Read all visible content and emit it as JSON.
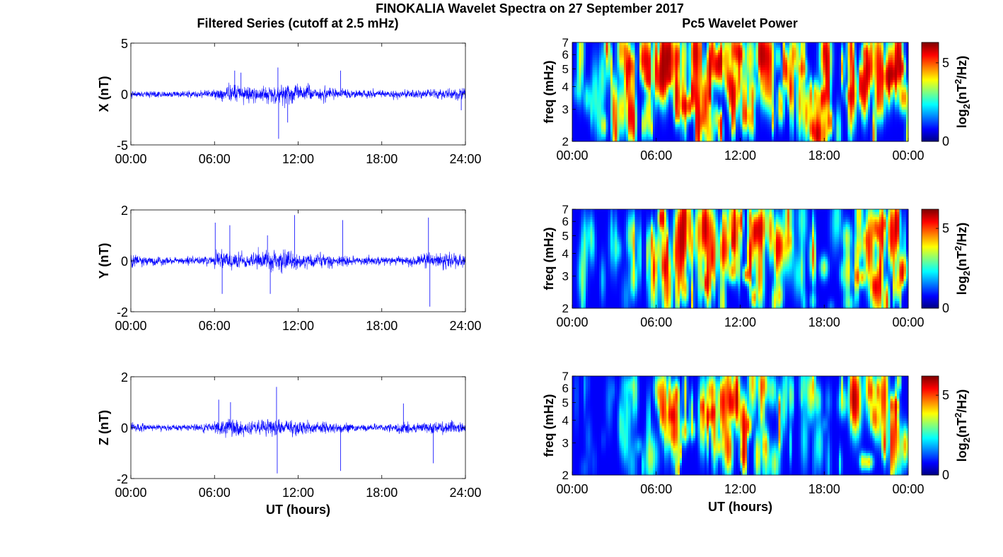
{
  "figure": {
    "title": "FINOKALIA Wavelet Spectra on 27 September 2017",
    "left_column_title": "Filtered Series (cutoff at 2.5 mHz)",
    "right_column_title": "Pc5 Wavelet Power",
    "colors": {
      "series_line": "#0000ff",
      "axes": "#000000",
      "background": "#ffffff"
    },
    "colormap": "jet"
  },
  "chart_data": [
    {
      "type": "line",
      "panel": "X",
      "ylabel": "X (nT)",
      "xlabel": "",
      "xlim": [
        0,
        24
      ],
      "ylim": [
        -5,
        5
      ],
      "xticks": [
        "00:00",
        "06:00",
        "12:00",
        "18:00",
        "24:00"
      ],
      "yticks": [
        "-5",
        "0",
        "5"
      ],
      "noise_std_by_hour": [
        0.25,
        0.25,
        0.22,
        0.22,
        0.25,
        0.28,
        0.45,
        0.65,
        0.6,
        0.55,
        0.6,
        0.75,
        0.55,
        0.45,
        0.4,
        0.4,
        0.3,
        0.28,
        0.25,
        0.35,
        0.3,
        0.3,
        0.35,
        0.45
      ],
      "spikes": [
        {
          "t": 7.45,
          "v": 2.3
        },
        {
          "t": 7.9,
          "v": 2.1
        },
        {
          "t": 10.55,
          "v": 2.6
        },
        {
          "t": 10.6,
          "v": -4.4
        },
        {
          "t": 11.25,
          "v": -2.8
        },
        {
          "t": 15.05,
          "v": 2.3
        },
        {
          "t": 23.7,
          "v": -1.6
        }
      ]
    },
    {
      "type": "line",
      "panel": "Y",
      "ylabel": "Y (nT)",
      "xlabel": "",
      "xlim": [
        0,
        24
      ],
      "ylim": [
        -2,
        2
      ],
      "xticks": [
        "00:00",
        "06:00",
        "12:00",
        "18:00",
        "24:00"
      ],
      "yticks": [
        "-2",
        "0",
        "2"
      ],
      "noise_std_by_hour": [
        0.18,
        0.12,
        0.12,
        0.1,
        0.12,
        0.14,
        0.25,
        0.28,
        0.2,
        0.28,
        0.3,
        0.28,
        0.2,
        0.2,
        0.18,
        0.16,
        0.12,
        0.12,
        0.12,
        0.12,
        0.15,
        0.22,
        0.25,
        0.2
      ],
      "spikes": [
        {
          "t": 6.05,
          "v": 1.5
        },
        {
          "t": 6.55,
          "v": -1.3
        },
        {
          "t": 7.1,
          "v": 1.4
        },
        {
          "t": 9.8,
          "v": 1.0
        },
        {
          "t": 10.0,
          "v": -1.3
        },
        {
          "t": 11.75,
          "v": 1.8
        },
        {
          "t": 15.2,
          "v": 1.6
        },
        {
          "t": 21.35,
          "v": 1.7
        },
        {
          "t": 21.45,
          "v": -1.8
        }
      ]
    },
    {
      "type": "line",
      "panel": "Z",
      "ylabel": "Z (nT)",
      "xlabel": "UT (hours)",
      "xlim": [
        0,
        24
      ],
      "ylim": [
        -2,
        2
      ],
      "xticks": [
        "00:00",
        "06:00",
        "12:00",
        "18:00",
        "24:00"
      ],
      "yticks": [
        "-2",
        "0",
        "2"
      ],
      "noise_std_by_hour": [
        0.12,
        0.1,
        0.09,
        0.09,
        0.1,
        0.12,
        0.22,
        0.25,
        0.18,
        0.2,
        0.25,
        0.24,
        0.18,
        0.15,
        0.14,
        0.15,
        0.1,
        0.1,
        0.1,
        0.18,
        0.14,
        0.16,
        0.2,
        0.16
      ],
      "spikes": [
        {
          "t": 6.3,
          "v": 1.1
        },
        {
          "t": 7.15,
          "v": 1.0
        },
        {
          "t": 10.45,
          "v": 1.6
        },
        {
          "t": 10.5,
          "v": -1.8
        },
        {
          "t": 15.05,
          "v": -1.7
        },
        {
          "t": 19.55,
          "v": 0.95
        },
        {
          "t": 21.7,
          "v": -1.4
        }
      ]
    },
    {
      "type": "heatmap",
      "panel": "X",
      "ylabel": "freq (mHz)",
      "xlabel": "",
      "xlim": [
        0,
        24
      ],
      "ylim": [
        2,
        7
      ],
      "yscale": "log",
      "xticks": [
        "00:00",
        "06:00",
        "12:00",
        "18:00",
        "00:00"
      ],
      "yticks": [
        "2",
        "3",
        "4",
        "5",
        "6",
        "7"
      ],
      "colorbar": {
        "label_base": "log",
        "label_sub": "2",
        "label_mid": "(nT",
        "label_sup": "2",
        "label_end": "/Hz)",
        "range": [
          0,
          6.3
        ],
        "ticks": [
          "0",
          "5"
        ]
      },
      "activity_by_hour": [
        0.3,
        0.35,
        0.6,
        0.85,
        0.95,
        1.0,
        1.0,
        1.0,
        1.0,
        1.0,
        1.0,
        1.0,
        0.9,
        0.75,
        0.7,
        0.8,
        0.65,
        0.95,
        0.9,
        0.7,
        0.8,
        0.9,
        1.0,
        1.0
      ]
    },
    {
      "type": "heatmap",
      "panel": "Y",
      "ylabel": "freq (mHz)",
      "xlabel": "",
      "xlim": [
        0,
        24
      ],
      "ylim": [
        2,
        7
      ],
      "yscale": "log",
      "xticks": [
        "00:00",
        "06:00",
        "12:00",
        "18:00",
        "00:00"
      ],
      "yticks": [
        "2",
        "3",
        "4",
        "5",
        "6",
        "7"
      ],
      "colorbar": {
        "label_base": "log",
        "label_sub": "2",
        "label_mid": "(nT",
        "label_sup": "2",
        "label_end": "/Hz)",
        "range": [
          0,
          6.2
        ],
        "ticks": [
          "0",
          "5"
        ]
      },
      "activity_by_hour": [
        0.25,
        0.15,
        0.15,
        0.2,
        0.4,
        0.6,
        0.85,
        0.95,
        0.7,
        0.95,
        0.75,
        0.85,
        0.85,
        0.8,
        0.7,
        0.55,
        0.3,
        0.5,
        0.2,
        0.45,
        0.7,
        0.8,
        0.95,
        0.85
      ]
    },
    {
      "type": "heatmap",
      "panel": "Z",
      "ylabel": "freq (mHz)",
      "xlabel": "UT (hours)",
      "xlim": [
        0,
        24
      ],
      "ylim": [
        2,
        7
      ],
      "yscale": "log",
      "xticks": [
        "00:00",
        "06:00",
        "12:00",
        "18:00",
        "00:00"
      ],
      "yticks": [
        "2",
        "3",
        "4",
        "5",
        "6",
        "7"
      ],
      "colorbar": {
        "label_base": "log",
        "label_sub": "2",
        "label_mid": "(nT",
        "label_sup": "2",
        "label_end": "/Hz)",
        "range": [
          0,
          6.2
        ],
        "ticks": [
          "0",
          "5"
        ]
      },
      "activity_by_hour": [
        0.15,
        0.1,
        0.1,
        0.25,
        0.35,
        0.35,
        0.6,
        0.8,
        0.5,
        0.7,
        0.75,
        0.85,
        0.8,
        0.65,
        0.5,
        0.4,
        0.25,
        0.45,
        0.2,
        0.4,
        0.6,
        0.75,
        0.85,
        0.8
      ]
    }
  ]
}
